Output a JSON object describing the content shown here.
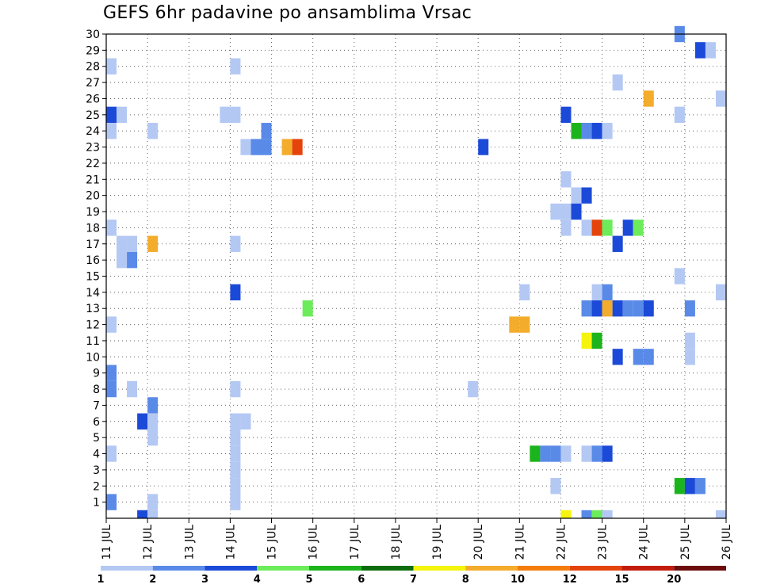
{
  "chart_data": {
    "type": "heatmap",
    "title": "GEFS 6hr padavine po ansamblima Vrsac",
    "x_ticks": [
      "11 JUL",
      "12 JUL",
      "13 JUL",
      "14 JUL",
      "15 JUL",
      "16 JUL",
      "17 JUL",
      "18 JUL",
      "19 JUL",
      "20 JUL",
      "21 JUL",
      "22 JUL",
      "23 JUL",
      "24 JUL",
      "25 JUL",
      "26 JUL"
    ],
    "y_ticks": [
      "1",
      "2",
      "3",
      "4",
      "5",
      "6",
      "7",
      "8",
      "9",
      "10",
      "11",
      "12",
      "13",
      "14",
      "15",
      "16",
      "17",
      "18",
      "19",
      "20",
      "21",
      "22",
      "23",
      "24",
      "25",
      "26",
      "27",
      "28",
      "29",
      "30"
    ],
    "x_unit": "6h step (4 per day)",
    "steps_per_day": 4,
    "grid": true,
    "legend": {
      "position": "bottom",
      "labels": [
        "1",
        "2",
        "3",
        "4",
        "5",
        "6",
        "7",
        "8",
        "10",
        "12",
        "15",
        "20"
      ],
      "colors": [
        "#b4c8f4",
        "#5a8ae8",
        "#1c4ad8",
        "#6cec5a",
        "#1cb41c",
        "#0c6c0c",
        "#f4f40c",
        "#f4ac2c",
        "#f47c0c",
        "#e4440c",
        "#c41c0c",
        "#6c0c0c"
      ]
    },
    "cells": [
      [
        30,
        59,
        2
      ],
      [
        30,
        64,
        1
      ],
      [
        30,
        65,
        3
      ],
      [
        30,
        66,
        3
      ],
      [
        30,
        74,
        6
      ],
      [
        29,
        61,
        3
      ],
      [
        29,
        62,
        1
      ],
      [
        28,
        4,
        1
      ],
      [
        28,
        16,
        1
      ],
      [
        28,
        70,
        5
      ],
      [
        28,
        72,
        2
      ],
      [
        28,
        73,
        10
      ],
      [
        28,
        74,
        5
      ],
      [
        27,
        53,
        1
      ],
      [
        27,
        65,
        3
      ],
      [
        27,
        66,
        2
      ],
      [
        27,
        67,
        1
      ],
      [
        27,
        68,
        1
      ],
      [
        26,
        56,
        8
      ],
      [
        26,
        63,
        1
      ],
      [
        26,
        64,
        2
      ],
      [
        26,
        65,
        3
      ],
      [
        25,
        4,
        3
      ],
      [
        25,
        5,
        1
      ],
      [
        25,
        15,
        1
      ],
      [
        25,
        16,
        1
      ],
      [
        25,
        48,
        3
      ],
      [
        25,
        59,
        1
      ],
      [
        24,
        4,
        1
      ],
      [
        24,
        8,
        1
      ],
      [
        24,
        19,
        2
      ],
      [
        24,
        49,
        5
      ],
      [
        24,
        50,
        2
      ],
      [
        24,
        51,
        3
      ],
      [
        24,
        52,
        1
      ],
      [
        24,
        71,
        5
      ],
      [
        23,
        17,
        1
      ],
      [
        23,
        18,
        2
      ],
      [
        23,
        21,
        8
      ],
      [
        23,
        22,
        10
      ],
      [
        23,
        19,
        2
      ],
      [
        23,
        40,
        3
      ],
      [
        23,
        68,
        6
      ],
      [
        22,
        69,
        4
      ],
      [
        21,
        48,
        1
      ],
      [
        21,
        70,
        2
      ],
      [
        21,
        72,
        4
      ],
      [
        21,
        73,
        1
      ],
      [
        20,
        49,
        1
      ],
      [
        20,
        50,
        3
      ],
      [
        19,
        47,
        1
      ],
      [
        19,
        48,
        1
      ],
      [
        19,
        49,
        3
      ],
      [
        18,
        4,
        1
      ],
      [
        18,
        48,
        1
      ],
      [
        18,
        50,
        1
      ],
      [
        18,
        51,
        10
      ],
      [
        18,
        52,
        4
      ],
      [
        18,
        54,
        3
      ],
      [
        18,
        55,
        4
      ],
      [
        18,
        69,
        2
      ],
      [
        18,
        71,
        20
      ],
      [
        18,
        72,
        3
      ],
      [
        18,
        73,
        4
      ],
      [
        18,
        74,
        10
      ],
      [
        18,
        75,
        7
      ],
      [
        17,
        5,
        1
      ],
      [
        17,
        6,
        1
      ],
      [
        17,
        8,
        8
      ],
      [
        17,
        16,
        1
      ],
      [
        17,
        53,
        3
      ],
      [
        17,
        69,
        1
      ],
      [
        16,
        5,
        1
      ],
      [
        16,
        6,
        2
      ],
      [
        15,
        59,
        1
      ],
      [
        15,
        70,
        6
      ],
      [
        15,
        71,
        2
      ],
      [
        14,
        16,
        3
      ],
      [
        14,
        44,
        1
      ],
      [
        14,
        51,
        1
      ],
      [
        14,
        52,
        2
      ],
      [
        14,
        63,
        1
      ],
      [
        13,
        23,
        4
      ],
      [
        13,
        50,
        2
      ],
      [
        13,
        51,
        3
      ],
      [
        13,
        52,
        8
      ],
      [
        13,
        53,
        3
      ],
      [
        13,
        54,
        2
      ],
      [
        13,
        55,
        2
      ],
      [
        13,
        56,
        3
      ],
      [
        13,
        60,
        2
      ],
      [
        13,
        66,
        5
      ],
      [
        13,
        67,
        1
      ],
      [
        13,
        68,
        7
      ],
      [
        13,
        69,
        20
      ],
      [
        13,
        70,
        4
      ],
      [
        12,
        4,
        1
      ],
      [
        12,
        43,
        8
      ],
      [
        12,
        44,
        8
      ],
      [
        11,
        50,
        7
      ],
      [
        11,
        51,
        5
      ],
      [
        11,
        60,
        1
      ],
      [
        11,
        70,
        1
      ],
      [
        10,
        53,
        3
      ],
      [
        10,
        55,
        2
      ],
      [
        10,
        56,
        2
      ],
      [
        10,
        60,
        1
      ],
      [
        10,
        67,
        2
      ],
      [
        10,
        68,
        5
      ],
      [
        9,
        4,
        2
      ],
      [
        8,
        4,
        2
      ],
      [
        8,
        6,
        1
      ],
      [
        8,
        16,
        1
      ],
      [
        8,
        39,
        1
      ],
      [
        7,
        8,
        2
      ],
      [
        7,
        64,
        2
      ],
      [
        6,
        7,
        3
      ],
      [
        6,
        8,
        1
      ],
      [
        6,
        16,
        1
      ],
      [
        6,
        17,
        1
      ],
      [
        6,
        70,
        8
      ],
      [
        5,
        8,
        1
      ],
      [
        5,
        16,
        1
      ],
      [
        4,
        4,
        1
      ],
      [
        4,
        16,
        1
      ],
      [
        4,
        45,
        5
      ],
      [
        4,
        46,
        2
      ],
      [
        4,
        47,
        2
      ],
      [
        4,
        48,
        1
      ],
      [
        4,
        50,
        1
      ],
      [
        4,
        51,
        2
      ],
      [
        4,
        52,
        3
      ],
      [
        3,
        16,
        1
      ],
      [
        3,
        70,
        2
      ],
      [
        3,
        72,
        1
      ],
      [
        3,
        73,
        12
      ],
      [
        3,
        74,
        5
      ],
      [
        3,
        75,
        2
      ],
      [
        2,
        16,
        1
      ],
      [
        2,
        47,
        1
      ],
      [
        2,
        59,
        5
      ],
      [
        2,
        60,
        3
      ],
      [
        2,
        61,
        2
      ],
      [
        2,
        75,
        12
      ],
      [
        1,
        3,
        1
      ],
      [
        1,
        4,
        2
      ],
      [
        1,
        8,
        1
      ],
      [
        1,
        16,
        1
      ],
      [
        1,
        73,
        1
      ],
      [
        1,
        75,
        1
      ],
      [
        0,
        7,
        3
      ],
      [
        0,
        8,
        1
      ],
      [
        0,
        48,
        7
      ],
      [
        0,
        50,
        2
      ],
      [
        0,
        51,
        4
      ],
      [
        0,
        52,
        1
      ],
      [
        0,
        63,
        1
      ],
      [
        0,
        64,
        1
      ],
      [
        0,
        65,
        1
      ],
      [
        0,
        66,
        2
      ],
      [
        0,
        67,
        20
      ],
      [
        0,
        68,
        3
      ],
      [
        0,
        69,
        1
      ]
    ]
  }
}
